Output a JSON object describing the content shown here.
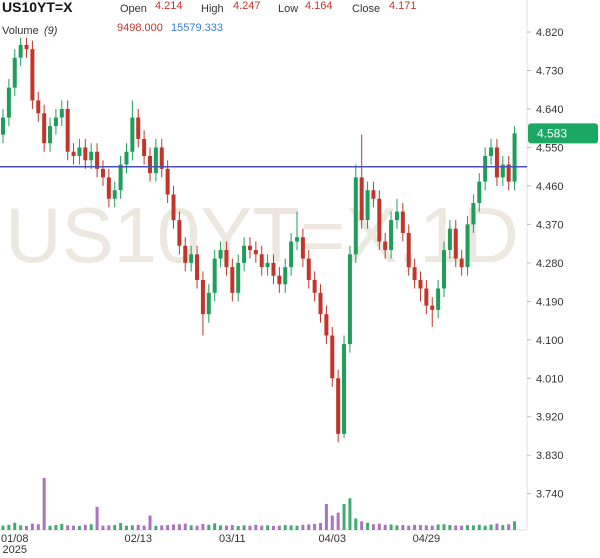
{
  "header": {
    "symbol": "US10YT=X",
    "open_label": "Open",
    "open": 4.214,
    "high_label": "High",
    "high": 4.247,
    "low_label": "Low",
    "low": 4.164,
    "close_label": "Close",
    "close": 4.171,
    "volume_label": "Volume",
    "volume_period": "(9)",
    "volume_value": "9498.000",
    "volume_ma_value": "15579.333"
  },
  "chart_data": {
    "type": "candlestick",
    "watermark": "US10YT=X,1D",
    "categories": [
      null,
      null,
      "01/08",
      null,
      null,
      null,
      null,
      null,
      null,
      null,
      null,
      null,
      null,
      null,
      null,
      null,
      null,
      null,
      null,
      null,
      null,
      null,
      null,
      "02/13",
      null,
      null,
      null,
      null,
      null,
      null,
      null,
      null,
      null,
      null,
      null,
      null,
      null,
      null,
      null,
      "03/11",
      null,
      null,
      null,
      null,
      null,
      null,
      null,
      null,
      null,
      null,
      null,
      null,
      null,
      null,
      null,
      null,
      "04/03",
      null,
      null,
      null,
      null,
      null,
      null,
      null,
      null,
      null,
      null,
      null,
      null,
      null,
      null,
      null,
      "04/29",
      null,
      null,
      null,
      null,
      null,
      null,
      null,
      null,
      null,
      null,
      null,
      null,
      null,
      null,
      null
    ],
    "year_label": "2025",
    "open": [
      4.58,
      4.62,
      4.69,
      4.76,
      4.79,
      4.78,
      4.66,
      4.63,
      4.56,
      4.6,
      4.62,
      4.64,
      4.54,
      4.53,
      4.55,
      4.52,
      4.54,
      4.5,
      4.48,
      4.43,
      4.45,
      4.51,
      4.54,
      4.62,
      4.57,
      4.53,
      4.49,
      4.55,
      4.5,
      4.44,
      4.38,
      4.32,
      4.28,
      4.3,
      4.24,
      4.16,
      4.21,
      4.29,
      4.31,
      4.27,
      4.21,
      4.28,
      4.32,
      4.31,
      4.3,
      4.27,
      4.28,
      4.25,
      4.23,
      4.27,
      4.33,
      4.34,
      4.29,
      4.24,
      4.21,
      4.16,
      4.11,
      4.01,
      3.88,
      4.09,
      4.3,
      4.48,
      4.38,
      4.45,
      4.43,
      4.33,
      4.31,
      4.38,
      4.4,
      4.35,
      4.27,
      4.24,
      4.22,
      4.18,
      4.17,
      4.22,
      4.31,
      4.36,
      4.29,
      4.27,
      4.37,
      4.42,
      4.47,
      4.53,
      4.55,
      4.48,
      4.51,
      4.47
    ],
    "high": [
      4.64,
      4.71,
      4.78,
      4.81,
      4.81,
      4.8,
      4.68,
      4.65,
      4.62,
      4.64,
      4.66,
      4.66,
      4.56,
      4.57,
      4.57,
      4.56,
      4.56,
      4.52,
      4.5,
      4.47,
      4.53,
      4.56,
      4.66,
      4.64,
      4.59,
      4.55,
      4.57,
      4.57,
      4.52,
      4.46,
      4.4,
      4.34,
      4.32,
      4.32,
      4.26,
      4.23,
      4.31,
      4.33,
      4.33,
      4.29,
      4.3,
      4.34,
      4.34,
      4.33,
      4.32,
      4.3,
      4.3,
      4.27,
      4.29,
      4.35,
      4.4,
      4.36,
      4.31,
      4.26,
      4.23,
      4.18,
      4.13,
      4.03,
      4.11,
      4.32,
      4.51,
      4.58,
      4.47,
      4.47,
      4.45,
      4.35,
      4.4,
      4.43,
      4.42,
      4.37,
      4.29,
      4.26,
      4.24,
      4.2,
      4.24,
      4.33,
      4.38,
      4.38,
      4.31,
      4.39,
      4.44,
      4.49,
      4.55,
      4.57,
      4.57,
      4.53,
      4.53,
      4.6
    ],
    "low": [
      4.56,
      4.6,
      4.67,
      4.74,
      4.76,
      4.64,
      4.61,
      4.54,
      4.54,
      4.58,
      4.6,
      4.52,
      4.51,
      4.51,
      4.5,
      4.5,
      4.48,
      4.46,
      4.41,
      4.41,
      4.43,
      4.49,
      4.52,
      4.55,
      4.51,
      4.47,
      4.47,
      4.48,
      4.42,
      4.36,
      4.3,
      4.26,
      4.26,
      4.22,
      4.11,
      4.14,
      4.19,
      4.27,
      4.25,
      4.19,
      4.19,
      4.26,
      4.29,
      4.28,
      4.25,
      4.25,
      4.23,
      4.21,
      4.21,
      4.25,
      4.31,
      4.27,
      4.22,
      4.19,
      4.14,
      4.09,
      3.99,
      3.86,
      3.87,
      4.07,
      4.28,
      4.36,
      4.36,
      4.41,
      4.31,
      4.29,
      4.29,
      4.36,
      4.33,
      4.25,
      4.22,
      4.19,
      4.16,
      4.13,
      4.15,
      4.2,
      4.29,
      4.27,
      4.25,
      4.25,
      4.35,
      4.4,
      4.45,
      4.51,
      4.46,
      4.46,
      4.45,
      4.45
    ],
    "close": [
      4.62,
      4.69,
      4.76,
      4.79,
      4.78,
      4.66,
      4.63,
      4.56,
      4.6,
      4.62,
      4.64,
      4.54,
      4.53,
      4.55,
      4.52,
      4.54,
      4.5,
      4.48,
      4.43,
      4.45,
      4.51,
      4.54,
      4.62,
      4.57,
      4.53,
      4.49,
      4.55,
      4.5,
      4.44,
      4.38,
      4.32,
      4.28,
      4.3,
      4.24,
      4.16,
      4.21,
      4.29,
      4.31,
      4.27,
      4.21,
      4.28,
      4.32,
      4.31,
      4.3,
      4.27,
      4.28,
      4.25,
      4.23,
      4.27,
      4.33,
      4.34,
      4.29,
      4.24,
      4.21,
      4.16,
      4.11,
      4.01,
      3.88,
      4.09,
      4.3,
      4.48,
      4.38,
      4.45,
      4.43,
      4.33,
      4.31,
      4.38,
      4.4,
      4.35,
      4.27,
      4.24,
      4.22,
      4.18,
      4.17,
      4.22,
      4.31,
      4.36,
      4.29,
      4.27,
      4.37,
      4.42,
      4.47,
      4.53,
      4.55,
      4.48,
      4.51,
      4.47,
      4.583
    ],
    "volume": [
      1500,
      1800,
      2500,
      1600,
      1400,
      2200,
      2000,
      18000,
      1500,
      1700,
      2100,
      1600,
      1500,
      1400,
      1800,
      2000,
      8000,
      1500,
      1600,
      1700,
      2400,
      1500,
      1600,
      1800,
      1500,
      5000,
      1400,
      1600,
      1700,
      1900,
      2000,
      2200,
      1600,
      1500,
      2100,
      1800,
      2300,
      1600,
      1500,
      1700,
      1400,
      1600,
      1500,
      1800,
      1500,
      1600,
      1400,
      1500,
      1700,
      1600,
      1500,
      1800,
      1900,
      2100,
      2400,
      9000,
      5000,
      6000,
      9000,
      11000,
      4000,
      3000,
      2500,
      2000,
      2200,
      1800,
      1900,
      1600,
      1700,
      1500,
      1800,
      1700,
      1600,
      1500,
      1900,
      2000,
      1700,
      1600,
      1500,
      1700,
      1600,
      1800,
      1500,
      1900,
      2200,
      1700,
      2000,
      3000
    ],
    "up_color": "#1e9e5a",
    "down_color": "#c2352b",
    "hline": 4.505,
    "hline_color": "#4a4fb5",
    "last_price": 4.583,
    "ylim": [
      3.655,
      4.895
    ],
    "yticks": [
      {
        "value": 3.74,
        "label": "3.740"
      },
      {
        "value": 3.83,
        "label": "3.830"
      },
      {
        "value": 3.92,
        "label": "3.920"
      },
      {
        "value": 4.01,
        "label": "4.010"
      },
      {
        "value": 4.1,
        "label": "4.100"
      },
      {
        "value": 4.19,
        "label": "4.190"
      },
      {
        "value": 4.28,
        "label": "4.280"
      },
      {
        "value": 4.37,
        "label": "4.370"
      },
      {
        "value": 4.46,
        "label": "4.460"
      },
      {
        "value": 4.55,
        "label": "4.550"
      },
      {
        "value": 4.64,
        "label": "4.640"
      },
      {
        "value": 4.73,
        "label": "4.730"
      },
      {
        "value": 4.82,
        "label": "4.820"
      }
    ]
  }
}
